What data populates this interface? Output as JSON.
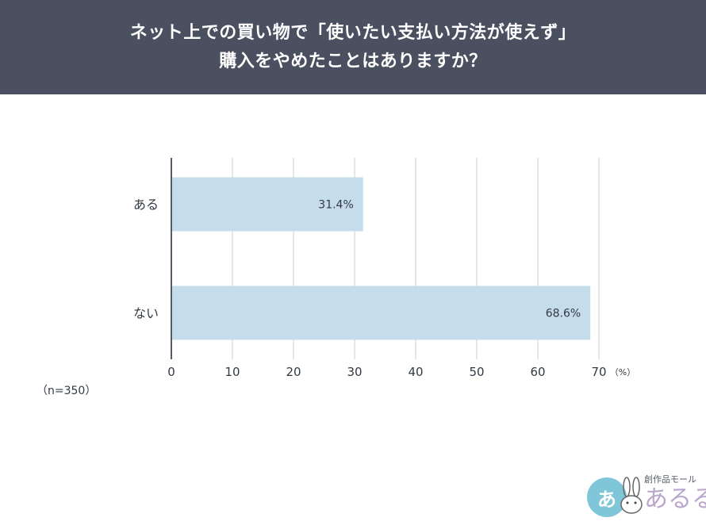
{
  "header": {
    "title_line1": "ネット上での買い物で「使いたい支払い方法が使えず」",
    "title_line2": "購入をやめたことはありますか？"
  },
  "sample_note": "（n=350）",
  "chart_data": {
    "type": "bar",
    "orientation": "horizontal",
    "categories": [
      "ある",
      "ない"
    ],
    "values": [
      31.4,
      68.6
    ],
    "value_labels": [
      "31.4%",
      "68.6%"
    ],
    "xlim": [
      0,
      70
    ],
    "xticks": [
      0,
      10,
      20,
      30,
      40,
      50,
      60,
      70
    ],
    "unit_label": "（%）",
    "grid": true,
    "bar_color": "#c5dcea",
    "axis_color": "#555b66",
    "grid_color": "#dcdde0"
  },
  "logo": {
    "mark": "あ",
    "tagline": "創作品モール",
    "brand": "あるる",
    "accent": "#7fc6d8",
    "brand_color": "#b9a6cc"
  }
}
